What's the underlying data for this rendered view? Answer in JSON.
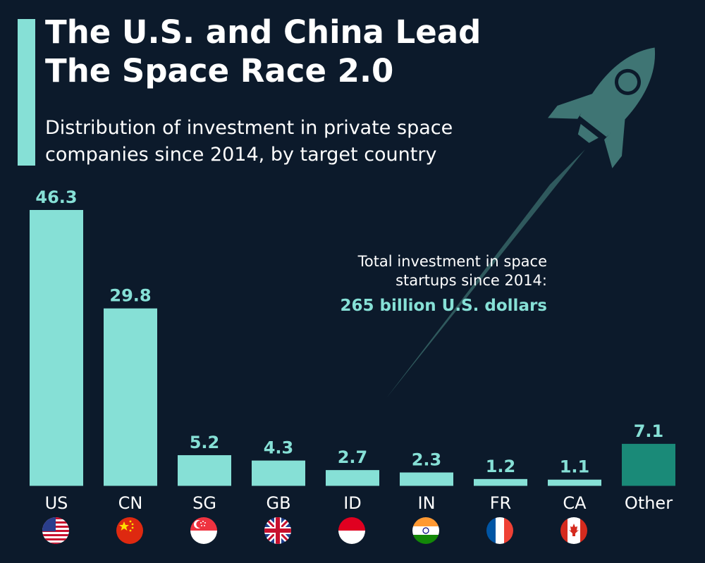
{
  "header": {
    "title_line1": "The U.S. and China Lead",
    "title_line2": "The Space Race 2.0",
    "subtitle_line1": "Distribution of investment in private space",
    "subtitle_line2": "companies since 2014, by target country"
  },
  "annotation": {
    "line1": "Total investment in space",
    "line2": "startups since 2014:",
    "highlight": "265 billion U.S. dollars"
  },
  "colors": {
    "background": "#0c1a2b",
    "bar": "#86e0d6",
    "bar_other": "#1a8a78",
    "text": "#ffffff",
    "rocket": "#3f7574"
  },
  "chart_data": {
    "type": "bar",
    "title": "The U.S. and China Lead The Space Race 2.0",
    "subtitle": "Distribution of investment in private space companies since 2014, by target country",
    "categories": [
      "US",
      "CN",
      "SG",
      "GB",
      "ID",
      "IN",
      "FR",
      "CA",
      "Other"
    ],
    "values": [
      46.3,
      29.8,
      5.2,
      4.3,
      2.7,
      2.3,
      1.2,
      1.1,
      7.1
    ],
    "unit": "percent",
    "ylim": [
      0,
      46.3
    ],
    "grid": false,
    "flags": [
      "us-flag-icon",
      "cn-flag-icon",
      "sg-flag-icon",
      "gb-flag-icon",
      "id-flag-icon",
      "in-flag-icon",
      "fr-flag-icon",
      "ca-flag-icon"
    ]
  }
}
